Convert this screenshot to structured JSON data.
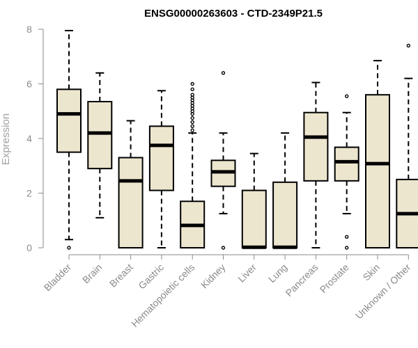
{
  "chart_data": {
    "type": "boxplot",
    "title": "ENSG00000263603 - CTD-2349P21.5",
    "ylabel": "Expression",
    "xlabel": "",
    "ylim": [
      0,
      8
    ],
    "yticks": [
      0,
      2,
      4,
      6,
      8
    ],
    "grid": false,
    "box_fill": "#ede6cf",
    "categories": [
      "Bladder",
      "Brain",
      "Breast",
      "Gastric",
      "Hematopoietic cells",
      "Kidney",
      "Liver",
      "Lung",
      "Pancreas",
      "Prostate",
      "Skin",
      "Unknown / Other"
    ],
    "boxes": [
      {
        "whisker_low": 0.3,
        "q1": 3.5,
        "median": 4.9,
        "q3": 5.8,
        "whisker_high": 7.95,
        "outliers": [
          0.0
        ]
      },
      {
        "whisker_low": 1.1,
        "q1": 2.9,
        "median": 4.2,
        "q3": 5.35,
        "whisker_high": 6.4,
        "outliers": []
      },
      {
        "whisker_low": 0.0,
        "q1": 0.0,
        "median": 2.45,
        "q3": 3.3,
        "whisker_high": 4.65,
        "outliers": []
      },
      {
        "whisker_low": 0.0,
        "q1": 2.1,
        "median": 3.75,
        "q3": 4.45,
        "whisker_high": 5.75,
        "outliers": []
      },
      {
        "whisker_low": 0.0,
        "q1": 0.0,
        "median": 0.82,
        "q3": 1.7,
        "whisker_high": 4.2,
        "outliers": [
          4.3,
          4.45,
          4.6,
          4.75,
          4.9,
          5.0,
          5.1,
          5.2,
          5.3,
          5.4,
          5.5,
          5.6,
          5.8,
          6.0
        ]
      },
      {
        "whisker_low": 1.25,
        "q1": 2.25,
        "median": 2.78,
        "q3": 3.2,
        "whisker_high": 4.2,
        "outliers": [
          0.0,
          6.4
        ]
      },
      {
        "whisker_low": 0.0,
        "q1": 0.0,
        "median": 0.02,
        "q3": 2.1,
        "whisker_high": 3.45,
        "outliers": []
      },
      {
        "whisker_low": 0.0,
        "q1": 0.0,
        "median": 0.02,
        "q3": 2.4,
        "whisker_high": 4.2,
        "outliers": []
      },
      {
        "whisker_low": 0.0,
        "q1": 2.45,
        "median": 4.05,
        "q3": 4.95,
        "whisker_high": 6.05,
        "outliers": []
      },
      {
        "whisker_low": 1.25,
        "q1": 2.45,
        "median": 3.15,
        "q3": 3.68,
        "whisker_high": 4.95,
        "outliers": [
          0.0,
          0.4,
          5.55
        ]
      },
      {
        "whisker_low": 0.0,
        "q1": 0.0,
        "median": 3.08,
        "q3": 5.6,
        "whisker_high": 6.85,
        "outliers": []
      },
      {
        "whisker_low": 0.0,
        "q1": 0.0,
        "median": 1.25,
        "q3": 2.5,
        "whisker_high": 6.2,
        "outliers": [
          7.4
        ]
      }
    ]
  }
}
